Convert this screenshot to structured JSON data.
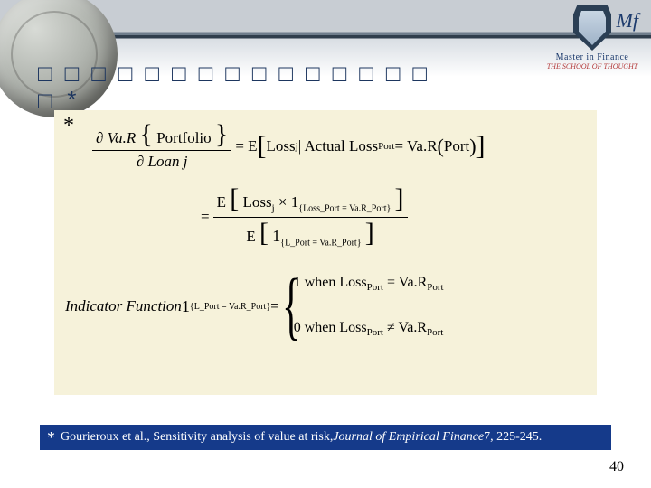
{
  "header": {
    "logo_line1": "Master in Finance",
    "logo_line2": "THE SCHOOL OF THOUGHT",
    "logo_initials": "Mf",
    "title_placeholder": "□□□□□□□□□□□□□□□\n□*"
  },
  "colors": {
    "formula_bg": "#f6f2da",
    "cite_bg": "#153a8a",
    "cite_text": "#ffffff",
    "title_text": "#1d365f"
  },
  "formula": {
    "asterisk": "*",
    "line1": {
      "lhs_num_pre": "∂ Va.R",
      "lhs_num_arg": "Portfolio",
      "lhs_den": "∂ Loan j",
      "eq": " = E",
      "rhs_a": "Loss",
      "rhs_a_sub": "j",
      "cond": " | Actual Loss",
      "cond_sub": "Port",
      "cond2": " = Va.R",
      "cond2_arg": "Port"
    },
    "line2": {
      "eq": "= ",
      "E": "E",
      "num_a": "Loss",
      "num_a_sub": "j",
      "times": " × 1",
      "ind_set_num": "{Loss_Port = Va.R_Port}",
      "den_one": "1",
      "ind_set_den": "{L_Port = Va.R_Port}"
    },
    "line3": {
      "label": "Indicator Function  ",
      "one": "1",
      "ind_set": "{L_Port = Va.R_Port}",
      "eq": " = ",
      "case1": "1  when Loss",
      "case1_sub": "Port",
      "case1b": " = Va.R",
      "case1b_sub": "Port",
      "case2": "0  when Loss",
      "case2_sub": "Port",
      "case2b": " ≠ Va.R",
      "case2b_sub": "Port"
    }
  },
  "citation": {
    "star": "*",
    "pre": " Gourieroux et al., Sensitivity analysis of value at risk, ",
    "journal": "Journal of Empirical Finance",
    "post": " 7, 225-245."
  },
  "page_number": "40"
}
